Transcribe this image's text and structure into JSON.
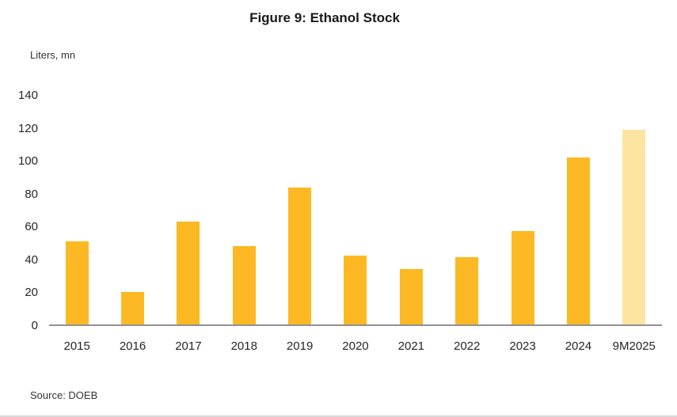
{
  "figure": {
    "title": "Figure 9: Ethanol Stock",
    "unit_label": "Liters, mn",
    "source": "Source: DOEB"
  },
  "colors": {
    "bar": "#FCB924",
    "bar_highlight": "#FDE4A0",
    "axis_line": "#919191",
    "tick_text": "#262626"
  },
  "chart_data": {
    "type": "bar",
    "categories": [
      "2015",
      "2016",
      "2017",
      "2018",
      "2019",
      "2020",
      "2021",
      "2022",
      "2023",
      "2024",
      "9M2025"
    ],
    "values": [
      51,
      20,
      63,
      48,
      84,
      42,
      34,
      41,
      57,
      102,
      119
    ],
    "title": "Figure 9: Ethanol Stock",
    "xlabel": "",
    "ylabel": "Liters, mn",
    "ylim": [
      0,
      140
    ],
    "yticks": [
      0,
      20,
      40,
      60,
      80,
      100,
      120,
      140
    ],
    "grid": false,
    "legend_position": "none",
    "highlight_last_bar": true
  }
}
